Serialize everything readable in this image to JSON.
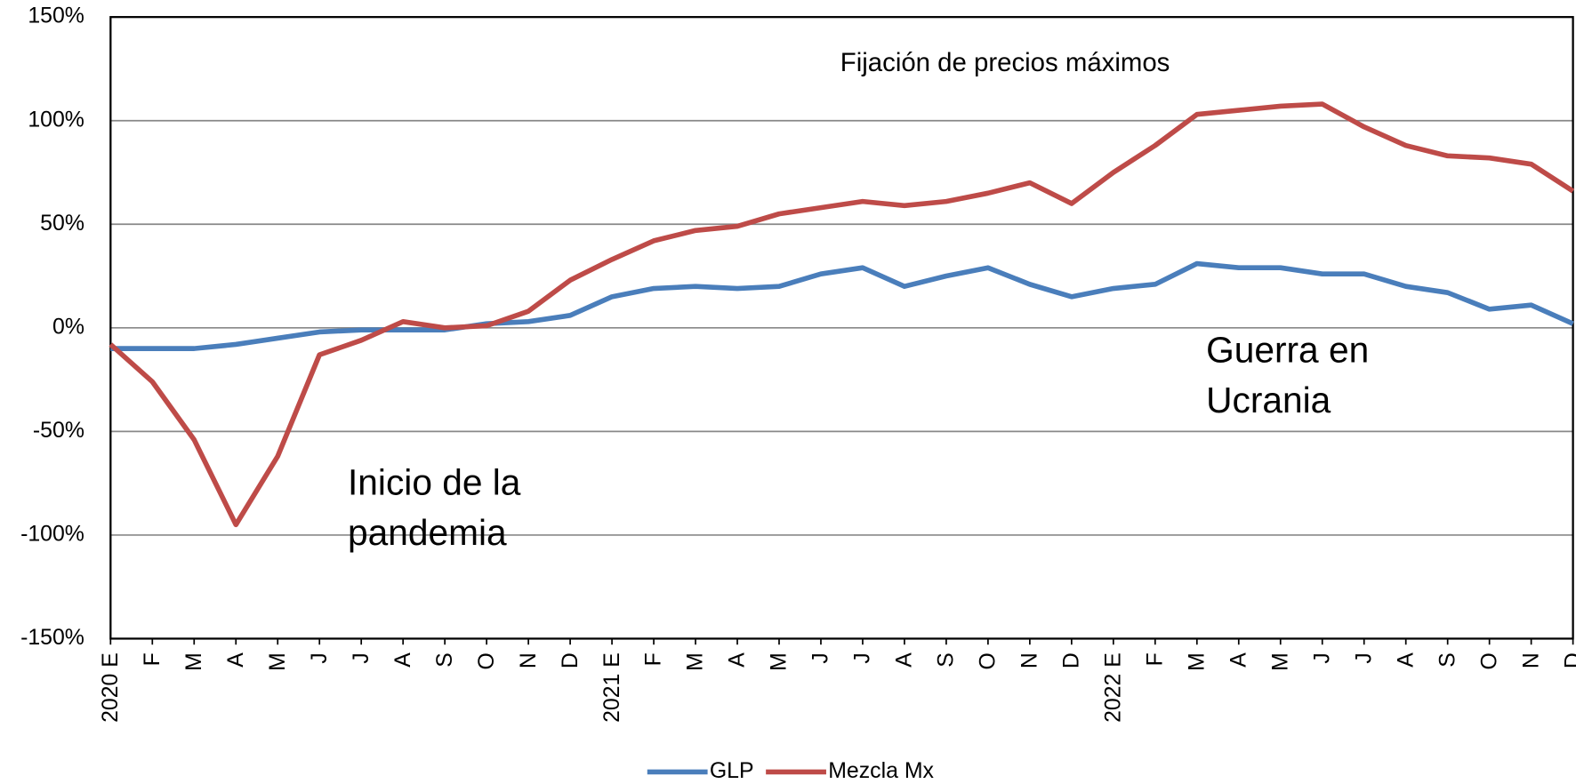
{
  "chart_data": {
    "type": "line",
    "categories": [
      "2020 E",
      "F",
      "M",
      "A",
      "M",
      "J",
      "J",
      "A",
      "S",
      "O",
      "N",
      "D",
      "2021 E",
      "F",
      "M",
      "A",
      "M",
      "J",
      "J",
      "A",
      "S",
      "O",
      "N",
      "D",
      "2022 E",
      "F",
      "M",
      "A",
      "M",
      "J",
      "J",
      "A",
      "S",
      "O",
      "N",
      "D"
    ],
    "series": [
      {
        "name": "GLP",
        "color": "#4a7ebb",
        "values": [
          -10,
          -10,
          -10,
          -8,
          -5,
          -2,
          -1,
          -1,
          -1,
          2,
          3,
          6,
          15,
          19,
          20,
          19,
          20,
          26,
          29,
          20,
          25,
          29,
          21,
          15,
          19,
          21,
          31,
          29,
          29,
          26,
          26,
          20,
          17,
          9,
          11,
          2
        ]
      },
      {
        "name": "Mezcla Mx",
        "color": "#be4b48",
        "values": [
          -8,
          -26,
          -54,
          -95,
          -62,
          -13,
          -6,
          3,
          0,
          1,
          8,
          23,
          33,
          42,
          47,
          49,
          55,
          58,
          61,
          59,
          61,
          65,
          70,
          60,
          75,
          88,
          103,
          105,
          107,
          108,
          97,
          88,
          83,
          82,
          79,
          66
        ]
      }
    ],
    "ylim": [
      -150,
      150
    ],
    "yticks": [
      {
        "value": -150,
        "label": "-150%"
      },
      {
        "value": -100,
        "label": "-100%"
      },
      {
        "value": -50,
        "label": "-50%"
      },
      {
        "value": 0,
        "label": "0%"
      },
      {
        "value": 50,
        "label": "50%"
      },
      {
        "value": 100,
        "label": "100%"
      },
      {
        "value": 150,
        "label": "150%"
      }
    ],
    "grid": true,
    "legend": "bottom",
    "annotations": [
      [
        "Fijación de precios máximos"
      ],
      [
        "Guerra en",
        "Ucrania"
      ],
      [
        "Inicio de la",
        "pandemia"
      ]
    ]
  }
}
